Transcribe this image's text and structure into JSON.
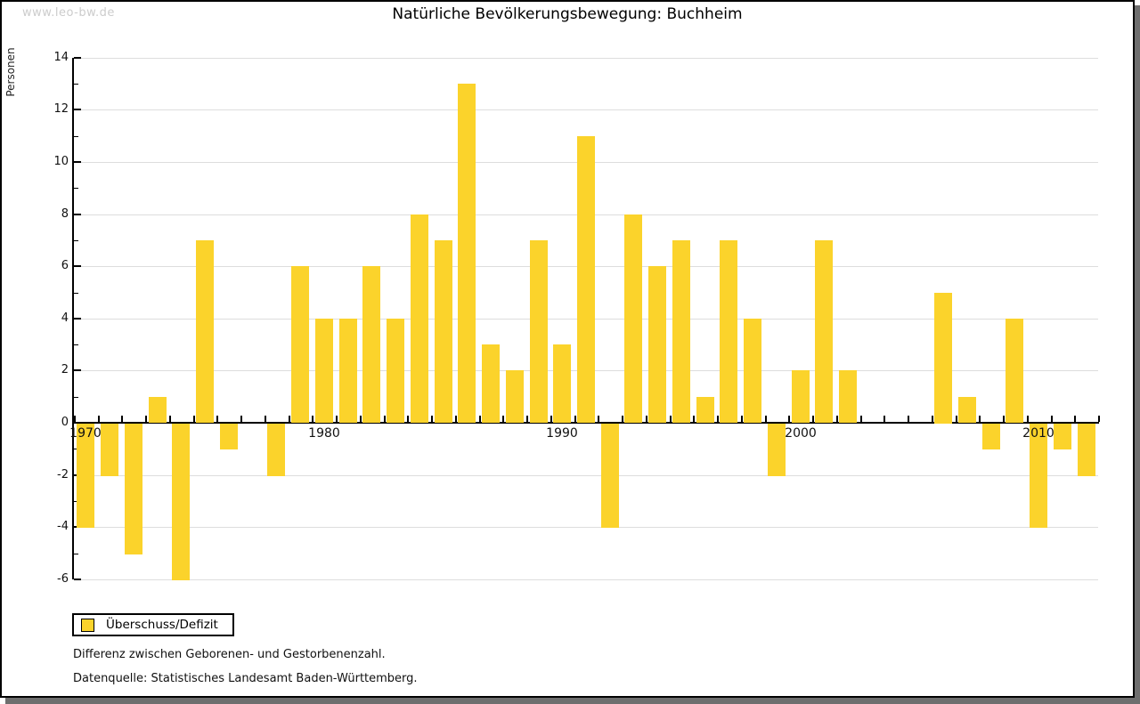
{
  "window": {
    "watermark": "www.leo-bw.de",
    "title": "Natürliche Bevölkerungsbewegung: Buchheim"
  },
  "chart_data": {
    "type": "bar",
    "title": "Natürliche Bevölkerungsbewegung: Buchheim",
    "xlabel": "",
    "ylabel": "Personen",
    "ylim": [
      -6,
      14
    ],
    "y_ticks": [
      14,
      12,
      10,
      8,
      6,
      4,
      2,
      0,
      -2,
      -4,
      -6
    ],
    "grid": "horizontal gridlines at even values, light gray",
    "legend_position": "bottom-left",
    "bar_color": "#FBD32B",
    "categories": [
      1970,
      1971,
      1972,
      1973,
      1974,
      1975,
      1976,
      1977,
      1978,
      1979,
      1980,
      1981,
      1982,
      1983,
      1984,
      1985,
      1986,
      1987,
      1988,
      1989,
      1990,
      1991,
      1992,
      1993,
      1994,
      1995,
      1996,
      1997,
      1998,
      1999,
      2000,
      2001,
      2002,
      2003,
      2004,
      2005,
      2006,
      2007,
      2008,
      2009,
      2010,
      2011,
      2012
    ],
    "values": [
      -4,
      -2,
      -5,
      1,
      -6,
      7,
      -1,
      0,
      -2,
      6,
      4,
      4,
      6,
      4,
      8,
      7,
      13,
      3,
      2,
      7,
      3,
      11,
      -4,
      8,
      6,
      7,
      1,
      7,
      4,
      -2,
      2,
      7,
      2,
      0,
      0,
      0,
      5,
      1,
      -1,
      4,
      -4,
      -1,
      -2
    ],
    "x_tick_labels": [
      "1970",
      "1980",
      "1990",
      "2000",
      "2010"
    ],
    "legend": {
      "label": "Überschuss/Defizit"
    }
  },
  "footer": {
    "line1": "Differenz zwischen Geborenen- und Gestorbenenzahl.",
    "line2": "Datenquelle: Statistisches Landesamt Baden-Württemberg."
  },
  "colors": {
    "bar": "#FBD32B",
    "gridline": "#dddddd",
    "axis": "#000000",
    "watermark": "#cccccc",
    "window_shadow": "#6e6e6e"
  }
}
